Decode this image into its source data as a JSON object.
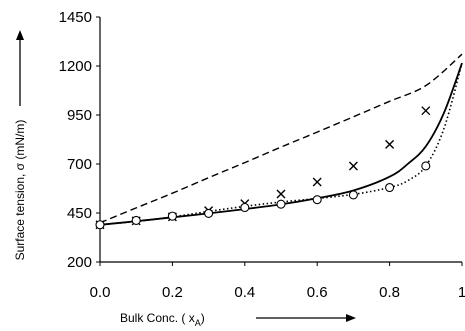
{
  "chart_data": {
    "type": "line",
    "title": "",
    "xlabel": "Bulk Conc. ( x",
    "xlabel_sub": "A",
    "xlabel_close": ")",
    "ylabel": "Surface tension, σ  (mN/m)",
    "xlim": [
      0,
      1
    ],
    "ylim": [
      200,
      1450
    ],
    "x_ticks": [
      0.0,
      0.2,
      0.4,
      0.6,
      0.8,
      1.0
    ],
    "x_tick_labels": [
      "0.0",
      "0.2",
      "0.4",
      "0.6",
      "0.8",
      "1"
    ],
    "y_ticks": [
      200,
      450,
      700,
      950,
      1200,
      1450
    ],
    "y_tick_labels": [
      "200",
      "450",
      "700",
      "950",
      "1200",
      "1450"
    ],
    "grid": false,
    "legend": "none",
    "series": [
      {
        "style": "dashed",
        "color": "#000000",
        "x": [
          0.0,
          0.1,
          0.2,
          0.3,
          0.4,
          0.5,
          0.6,
          0.7,
          0.8,
          0.9,
          1.0
        ],
        "y": [
          400,
          476,
          551,
          630,
          707,
          786,
          863,
          941,
          1020,
          1100,
          1260
        ]
      },
      {
        "style": "solid",
        "color": "#000000",
        "x": [
          0.0,
          0.1,
          0.2,
          0.3,
          0.4,
          0.5,
          0.6,
          0.7,
          0.8,
          0.85,
          0.9,
          0.95,
          1.0
        ],
        "y": [
          390,
          408,
          428,
          448,
          470,
          494,
          525,
          565,
          635,
          700,
          790,
          960,
          1215
        ]
      },
      {
        "style": "dotted",
        "color": "#000000",
        "x": [
          0.0,
          0.1,
          0.2,
          0.3,
          0.4,
          0.5,
          0.6,
          0.7,
          0.8,
          0.85,
          0.9,
          0.95,
          1.0
        ],
        "y": [
          390,
          407,
          430,
          458,
          484,
          506,
          524,
          545,
          580,
          615,
          690,
          880,
          1215
        ]
      },
      {
        "style": "markers",
        "marker": "x",
        "color": "#000000",
        "x": [
          0.0,
          0.1,
          0.2,
          0.3,
          0.4,
          0.5,
          0.6,
          0.7,
          0.8,
          0.9
        ],
        "y": [
          390,
          410,
          430,
          462,
          498,
          547,
          608,
          690,
          800,
          972
        ]
      },
      {
        "style": "markers",
        "marker": "circle",
        "color": "#000000",
        "x": [
          0.0,
          0.1,
          0.2,
          0.3,
          0.4,
          0.5,
          0.6,
          0.7,
          0.8,
          0.9
        ],
        "y": [
          390,
          412,
          434,
          448,
          478,
          495,
          518,
          542,
          580,
          690
        ]
      }
    ]
  }
}
